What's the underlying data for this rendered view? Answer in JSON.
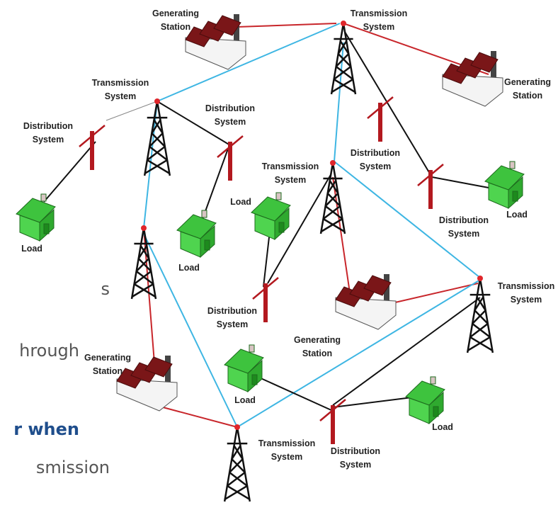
{
  "labels": [
    [
      "Generating",
      "Station"
    ],
    [
      "Transmission",
      "System"
    ],
    [
      "Generating",
      "Station"
    ],
    [
      "Transmission",
      "System"
    ],
    [
      "Distribution",
      "System"
    ],
    [
      "Distribution",
      "System"
    ],
    [
      "Load"
    ],
    [
      "Load"
    ],
    [
      "Transmission",
      "System"
    ],
    [
      "Distribution",
      "System"
    ],
    [
      "Load"
    ],
    [
      "Distribution",
      "System"
    ],
    [
      "Load"
    ],
    [
      "Distribution",
      "System"
    ],
    [
      "Generating",
      "Station"
    ],
    [
      "Transmission",
      "System"
    ],
    [
      "Generating",
      "Station"
    ],
    [
      "Load"
    ],
    [
      "Load"
    ],
    [
      "Distribution",
      "System"
    ],
    [
      "Transmission",
      "System"
    ]
  ],
  "slide_text": [
    "s",
    "hrough",
    "r when",
    "smission"
  ]
}
